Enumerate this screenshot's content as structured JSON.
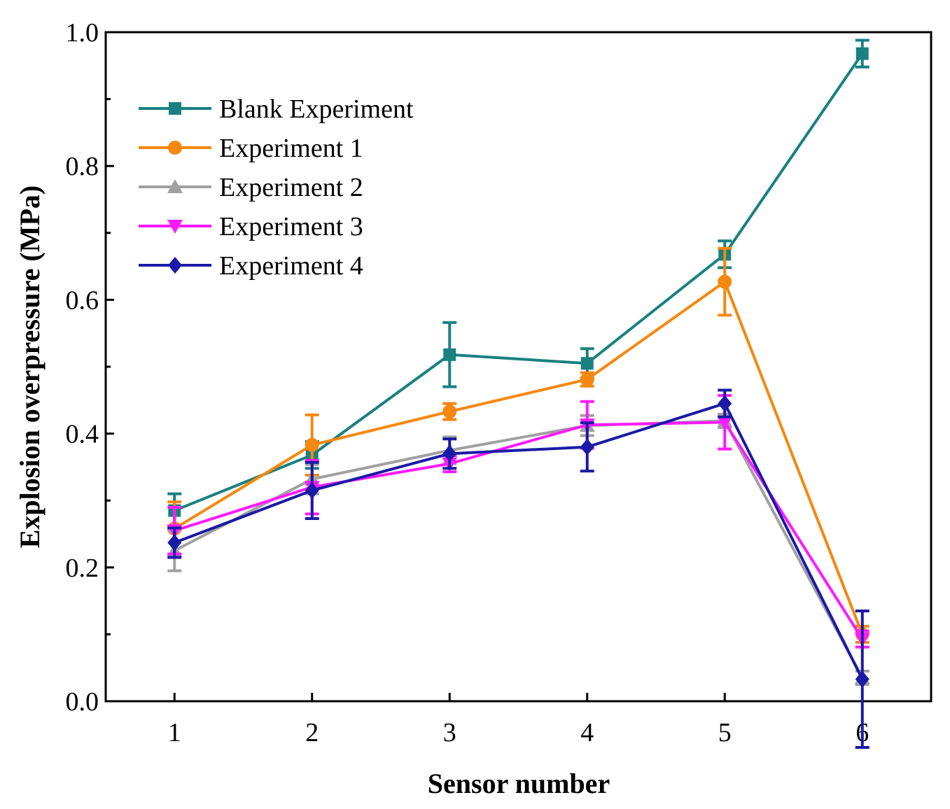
{
  "chart_data": {
    "type": "line",
    "xlabel": "Sensor number",
    "ylabel": "Explosion overpressure (MPa)",
    "x": [
      1,
      2,
      3,
      4,
      5,
      6
    ],
    "xlim": [
      0.5,
      6.5
    ],
    "ylim": [
      0.0,
      1.0
    ],
    "xticks": [
      "1",
      "2",
      "3",
      "4",
      "5",
      "6"
    ],
    "yticks": [
      "0.0",
      "0.2",
      "0.4",
      "0.6",
      "0.8",
      "1.0"
    ],
    "grid": false,
    "legend_position": "top-left",
    "series": [
      {
        "name": "Blank Experiment",
        "color": "#1a8080",
        "marker": "square",
        "values": [
          0.285,
          0.368,
          0.518,
          0.505,
          0.668,
          0.968
        ],
        "errors": [
          0.025,
          0.02,
          0.048,
          0.022,
          0.02,
          0.02
        ]
      },
      {
        "name": "Experiment 1",
        "color": "#f5880f",
        "marker": "circle",
        "values": [
          0.258,
          0.383,
          0.433,
          0.481,
          0.627,
          0.1
        ],
        "errors": [
          0.04,
          0.045,
          0.012,
          0.01,
          0.05,
          0.012
        ]
      },
      {
        "name": "Experiment 2",
        "color": "#a0a0a0",
        "marker": "triangle-up",
        "values": [
          0.225,
          0.332,
          0.375,
          0.412,
          0.419,
          0.035
        ],
        "errors": [
          0.03,
          0.022,
          0.02,
          0.015,
          0.01,
          0.01
        ]
      },
      {
        "name": "Experiment 3",
        "color": "#ff1aff",
        "marker": "triangle-down",
        "values": [
          0.255,
          0.32,
          0.355,
          0.413,
          0.417,
          0.093
        ],
        "errors": [
          0.035,
          0.04,
          0.012,
          0.035,
          0.04,
          0.012
        ]
      },
      {
        "name": "Experiment 4",
        "color": "#1a1aa6",
        "marker": "diamond",
        "values": [
          0.237,
          0.315,
          0.37,
          0.38,
          0.445,
          0.033
        ],
        "errors": [
          0.022,
          0.042,
          0.022,
          0.036,
          0.02,
          0.102
        ]
      }
    ]
  }
}
